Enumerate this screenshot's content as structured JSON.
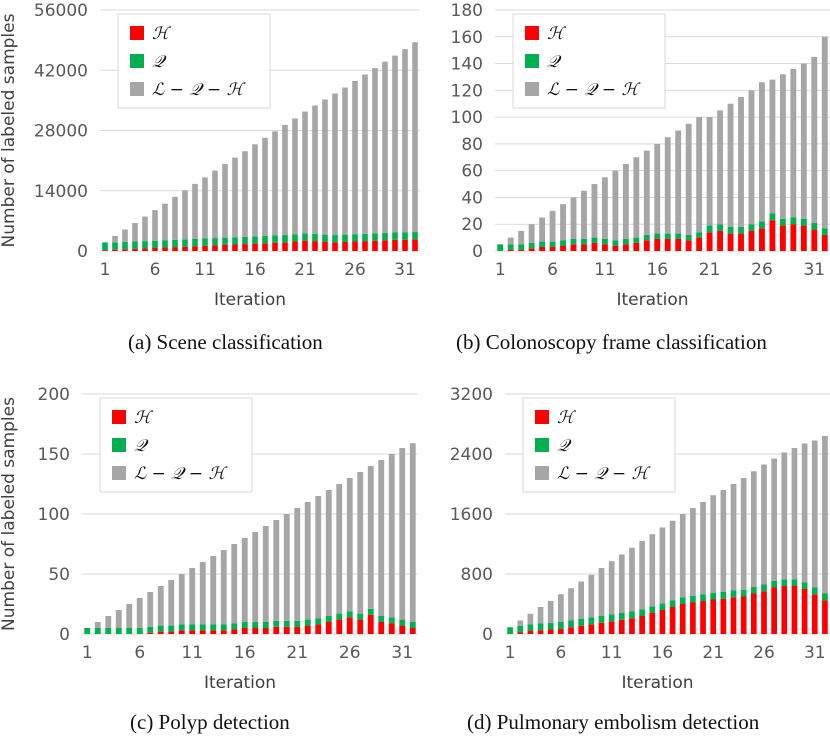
{
  "figure": {
    "xlabel": "Iteration",
    "ylabel": "Number of labeled samples",
    "series_names": [
      "ℋ",
      "𝒬",
      "ℒ − 𝒬 − ℋ"
    ],
    "colors": {
      "H": "#ff0000",
      "Q": "#00b050",
      "rest": "#a6a6a6",
      "grid": "#d9d9d9"
    },
    "x_ticks": [
      "1",
      "6",
      "11",
      "16",
      "21",
      "26",
      "31"
    ]
  },
  "captions": {
    "a": "(a) Scene classification",
    "b": "(b) Colonoscopy frame classification",
    "c": "(c) Polyp detection",
    "d": "(d) Pulmonary embolism detection"
  },
  "chart_data": [
    {
      "id": "a",
      "type": "bar",
      "stacked": true,
      "title": "",
      "xlabel": "Iteration",
      "ylabel": "Number of labeled samples",
      "categories": [
        "1",
        "2",
        "3",
        "4",
        "5",
        "6",
        "7",
        "8",
        "9",
        "10",
        "11",
        "12",
        "13",
        "14",
        "15",
        "16",
        "17",
        "18",
        "19",
        "20",
        "21",
        "22",
        "23",
        "24",
        "25",
        "26",
        "27",
        "28",
        "29",
        "30",
        "31",
        "32"
      ],
      "ylim": [
        0,
        56000
      ],
      "yticks": [
        "0",
        "14000",
        "28000",
        "42000",
        "56000"
      ],
      "series": [
        {
          "name": "ℋ",
          "values": [
            200,
            300,
            400,
            500,
            600,
            700,
            800,
            900,
            1000,
            1100,
            1200,
            1300,
            1400,
            1500,
            1600,
            1700,
            1800,
            1900,
            2000,
            2200,
            2400,
            2300,
            2100,
            2000,
            2100,
            2200,
            2300,
            2400,
            2500,
            2600,
            2600,
            2700
          ]
        },
        {
          "name": "𝒬",
          "values": [
            1800,
            1700,
            1700,
            1700,
            1700,
            1700,
            1700,
            1700,
            1700,
            1700,
            1700,
            1700,
            1700,
            1700,
            1700,
            1700,
            1700,
            1700,
            1700,
            1700,
            1700,
            1700,
            1700,
            1700,
            1700,
            1700,
            1700,
            1700,
            1700,
            1700,
            1700,
            1700
          ]
        },
        {
          "name": "ℒ − 𝒬 − ℋ",
          "values": [
            0,
            1500,
            2900,
            4300,
            5700,
            7100,
            8500,
            10000,
            11400,
            12800,
            14200,
            15700,
            17100,
            18500,
            19900,
            21400,
            22800,
            24200,
            25600,
            26900,
            28300,
            29800,
            31400,
            32900,
            34200,
            35600,
            37000,
            38400,
            39800,
            41100,
            42600,
            44100
          ]
        }
      ]
    },
    {
      "id": "b",
      "type": "bar",
      "stacked": true,
      "title": "",
      "xlabel": "Iteration",
      "ylabel": "",
      "categories": [
        "1",
        "2",
        "3",
        "4",
        "5",
        "6",
        "7",
        "8",
        "9",
        "10",
        "11",
        "12",
        "13",
        "14",
        "15",
        "16",
        "17",
        "18",
        "19",
        "20",
        "21",
        "22",
        "23",
        "24",
        "25",
        "26",
        "27",
        "28",
        "29",
        "30",
        "31",
        "32"
      ],
      "ylim": [
        0,
        180
      ],
      "yticks": [
        "0",
        "20",
        "40",
        "60",
        "80",
        "100",
        "120",
        "140",
        "160",
        "180"
      ],
      "series": [
        {
          "name": "ℋ",
          "values": [
            0,
            1,
            1,
            2,
            3,
            3,
            4,
            5,
            5,
            6,
            5,
            4,
            5,
            6,
            8,
            9,
            9,
            9,
            8,
            10,
            14,
            15,
            13,
            13,
            15,
            17,
            23,
            19,
            20,
            19,
            16,
            12
          ]
        },
        {
          "name": "𝒬",
          "values": [
            5,
            4,
            4,
            4,
            4,
            4,
            4,
            4,
            4,
            4,
            4,
            4,
            4,
            4,
            4,
            4,
            4,
            4,
            4,
            4,
            5,
            5,
            5,
            5,
            5,
            5,
            5,
            5,
            5,
            5,
            5,
            5
          ]
        },
        {
          "name": "ℒ − 𝒬 − ℋ",
          "values": [
            0,
            5,
            10,
            14,
            18,
            23,
            27,
            31,
            36,
            40,
            46,
            52,
            56,
            60,
            63,
            67,
            72,
            77,
            83,
            86,
            81,
            85,
            92,
            97,
            100,
            104,
            100,
            108,
            111,
            116,
            124,
            143
          ]
        }
      ]
    },
    {
      "id": "c",
      "type": "bar",
      "stacked": true,
      "title": "",
      "xlabel": "Iteration",
      "ylabel": "Number of labeled samples",
      "categories": [
        "1",
        "2",
        "3",
        "4",
        "5",
        "6",
        "7",
        "8",
        "9",
        "10",
        "11",
        "12",
        "13",
        "14",
        "15",
        "16",
        "17",
        "18",
        "19",
        "20",
        "21",
        "22",
        "23",
        "24",
        "25",
        "26",
        "27",
        "28",
        "29",
        "30",
        "31",
        "32"
      ],
      "ylim": [
        0,
        200
      ],
      "yticks": [
        "0",
        "50",
        "100",
        "150",
        "200"
      ],
      "series": [
        {
          "name": "ℋ",
          "values": [
            0,
            0,
            0,
            0,
            0,
            0,
            1,
            2,
            2,
            3,
            3,
            3,
            3,
            3,
            4,
            5,
            5,
            5,
            6,
            6,
            6,
            7,
            8,
            10,
            12,
            14,
            12,
            16,
            10,
            9,
            7,
            5
          ]
        },
        {
          "name": "𝒬",
          "values": [
            5,
            5,
            5,
            5,
            5,
            5,
            5,
            5,
            5,
            5,
            5,
            5,
            5,
            5,
            5,
            5,
            5,
            5,
            5,
            5,
            5,
            5,
            5,
            5,
            5,
            5,
            5,
            5,
            5,
            5,
            5,
            5
          ]
        },
        {
          "name": "ℒ − 𝒬 − ℋ",
          "values": [
            0,
            5,
            10,
            15,
            20,
            25,
            29,
            33,
            38,
            42,
            47,
            52,
            57,
            62,
            66,
            70,
            75,
            80,
            84,
            89,
            94,
            98,
            102,
            105,
            108,
            111,
            118,
            119,
            130,
            136,
            143,
            149
          ]
        }
      ]
    },
    {
      "id": "d",
      "type": "bar",
      "stacked": true,
      "title": "",
      "xlabel": "Iteration",
      "ylabel": "",
      "categories": [
        "1",
        "2",
        "3",
        "4",
        "5",
        "6",
        "7",
        "8",
        "9",
        "10",
        "11",
        "12",
        "13",
        "14",
        "15",
        "16",
        "17",
        "18",
        "19",
        "20",
        "21",
        "22",
        "23",
        "24",
        "25",
        "26",
        "27",
        "28",
        "29",
        "30",
        "31",
        "32"
      ],
      "ylim": [
        0,
        3200
      ],
      "yticks": [
        "0",
        "800",
        "1600",
        "2400",
        "3200"
      ],
      "series": [
        {
          "name": "ℋ",
          "values": [
            0,
            20,
            40,
            50,
            60,
            70,
            90,
            110,
            130,
            150,
            170,
            190,
            210,
            240,
            280,
            320,
            360,
            400,
            420,
            440,
            460,
            470,
            490,
            500,
            540,
            570,
            620,
            640,
            640,
            600,
            530,
            450
          ]
        },
        {
          "name": "𝒬",
          "values": [
            90,
            90,
            90,
            90,
            90,
            90,
            90,
            90,
            90,
            90,
            90,
            90,
            90,
            90,
            90,
            90,
            90,
            90,
            90,
            90,
            90,
            90,
            90,
            90,
            90,
            90,
            90,
            90,
            90,
            90,
            90,
            90
          ]
        },
        {
          "name": "ℒ − 𝒬 − ℋ",
          "values": [
            0,
            70,
            140,
            220,
            290,
            370,
            430,
            500,
            570,
            640,
            710,
            780,
            850,
            910,
            960,
            1010,
            1060,
            1110,
            1170,
            1230,
            1300,
            1360,
            1420,
            1490,
            1540,
            1600,
            1630,
            1690,
            1750,
            1850,
            1960,
            2100
          ]
        }
      ]
    }
  ]
}
